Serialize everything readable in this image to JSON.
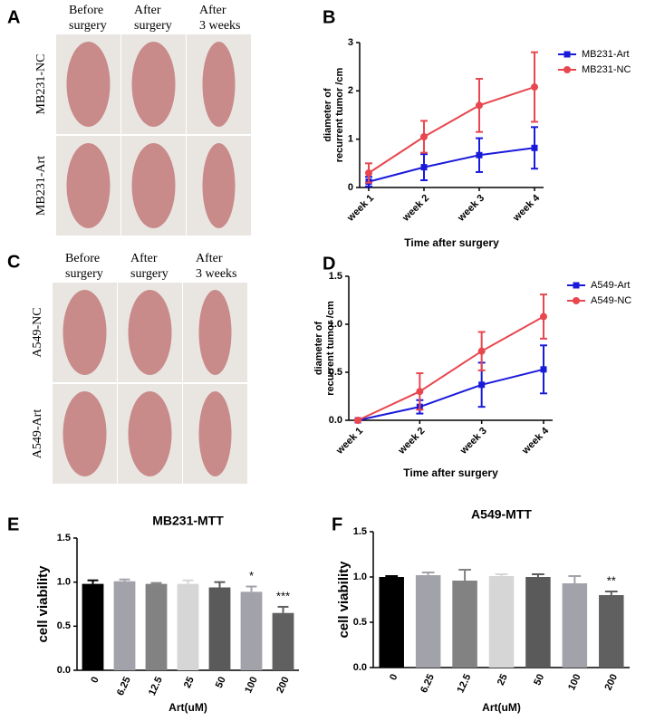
{
  "photo_panels": [
    {
      "letter": "A",
      "columns": [
        [
          "Before",
          "surgery"
        ],
        [
          "After",
          "surgery"
        ],
        [
          "After",
          "3 weeks"
        ]
      ],
      "rows": [
        "MB231-NC",
        "MB231-Art"
      ]
    },
    {
      "letter": "C",
      "columns": [
        [
          "Before",
          "surgery"
        ],
        [
          "After",
          "surgery"
        ],
        [
          "After",
          "3 weeks"
        ]
      ],
      "rows": [
        "A549-NC",
        "A549-Art"
      ]
    }
  ],
  "chart_data": [
    {
      "type": "line",
      "panel_letter": "B",
      "categories": [
        "week 1",
        "week 2",
        "week 3",
        "week 4"
      ],
      "xlabel": "Time after surgery",
      "ylabel": [
        "diameter of",
        "recurrent tumor /cm"
      ],
      "ylim": [
        0,
        3
      ],
      "yticks": [
        0,
        1,
        2,
        3
      ],
      "series": [
        {
          "name": "MB231-Art",
          "color": "#1a1adb",
          "marker": "square",
          "values": [
            0.12,
            0.42,
            0.67,
            0.82
          ],
          "errors": [
            0.1,
            0.27,
            0.35,
            0.43
          ]
        },
        {
          "name": "MB231-NC",
          "color": "#e8474f",
          "marker": "circle",
          "values": [
            0.3,
            1.05,
            1.7,
            2.08
          ],
          "errors": [
            0.2,
            0.33,
            0.55,
            0.72
          ]
        }
      ]
    },
    {
      "type": "line",
      "panel_letter": "D",
      "categories": [
        "week 1",
        "week 2",
        "week 3",
        "week 4"
      ],
      "xlabel": "Time after surgery",
      "ylabel": [
        "diameter of",
        "recurrent tumor /cm"
      ],
      "ylim": [
        0,
        1.5
      ],
      "yticks": [
        {
          "value": 0,
          "label": "0.0"
        },
        {
          "value": 0.5,
          "label": "0.5"
        },
        {
          "value": 1,
          "label": "1.0"
        },
        {
          "value": 1.5,
          "label": "1.5"
        }
      ],
      "series": [
        {
          "name": "A549-Art",
          "color": "#1a1adb",
          "marker": "square",
          "values": [
            0,
            0.14,
            0.37,
            0.53
          ],
          "errors": [
            0,
            0.07,
            0.23,
            0.25
          ]
        },
        {
          "name": "A549-NC",
          "color": "#e8474f",
          "marker": "circle",
          "values": [
            0,
            0.3,
            0.72,
            1.08
          ],
          "errors": [
            0,
            0.19,
            0.2,
            0.23
          ]
        }
      ]
    },
    {
      "type": "bar",
      "panel_letter": "E",
      "title": "MB231-MTT",
      "xlabel": "Art(uM)",
      "ylabel": "cell viability",
      "categories": [
        "0",
        "6.25",
        "12.5",
        "25",
        "50",
        "100",
        "200"
      ],
      "values": [
        0.98,
        1.01,
        0.98,
        0.98,
        0.94,
        0.89,
        0.65
      ],
      "errors": [
        0.04,
        0.02,
        0.01,
        0.04,
        0.06,
        0.06,
        0.07
      ],
      "colors": [
        "#000000",
        "#a2a2aa",
        "#828282",
        "#d6d6d6",
        "#5a5a5a",
        "#a2a2aa",
        "#606060"
      ],
      "annotations": [
        null,
        null,
        null,
        null,
        null,
        "*",
        "***"
      ],
      "ylim": [
        0,
        1.5
      ],
      "yticks": [
        {
          "value": 0,
          "label": "0.0"
        },
        {
          "value": 0.5,
          "label": "0.5"
        },
        {
          "value": 1,
          "label": "1.0"
        },
        {
          "value": 1.5,
          "label": "1.5"
        }
      ]
    },
    {
      "type": "bar",
      "panel_letter": "F",
      "title": "A549-MTT",
      "xlabel": "Art(uM)",
      "ylabel": "cell viability",
      "categories": [
        "0",
        "6.25",
        "12.5",
        "25",
        "50",
        "100",
        "200"
      ],
      "values": [
        1.0,
        1.02,
        0.96,
        1.01,
        1.0,
        0.93,
        0.8
      ],
      "errors": [
        0.01,
        0.03,
        0.12,
        0.02,
        0.03,
        0.08,
        0.04
      ],
      "colors": [
        "#000000",
        "#a2a2aa",
        "#828282",
        "#d6d6d6",
        "#5a5a5a",
        "#a2a2aa",
        "#606060"
      ],
      "annotations": [
        null,
        null,
        null,
        null,
        null,
        null,
        "**"
      ],
      "ylim": [
        0,
        1.5
      ],
      "yticks": [
        {
          "value": 0,
          "label": "0.0"
        },
        {
          "value": 0.5,
          "label": "0.5"
        },
        {
          "value": 1,
          "label": "1.0"
        },
        {
          "value": 1.5,
          "label": "1.5"
        }
      ]
    }
  ]
}
